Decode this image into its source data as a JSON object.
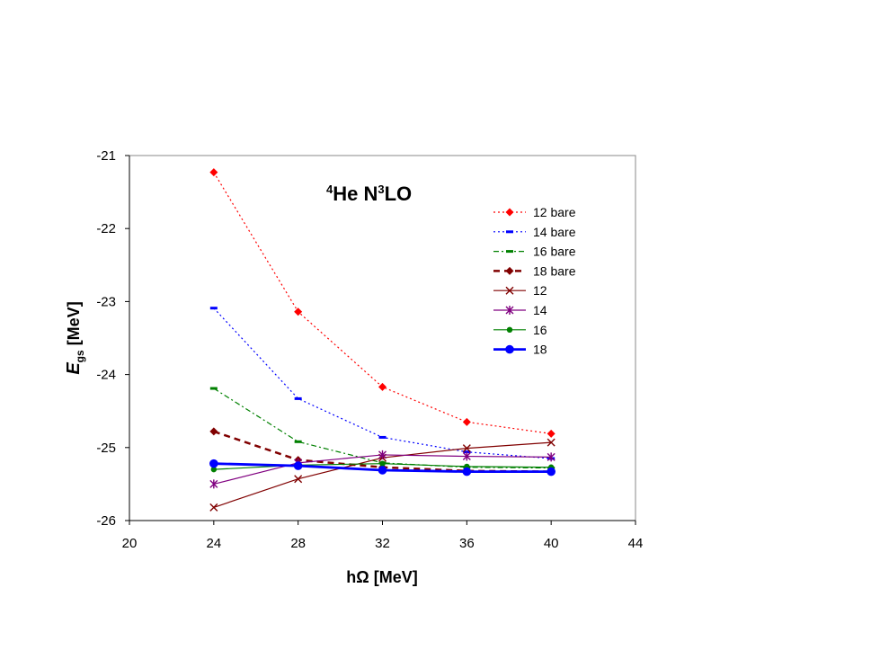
{
  "chart_data": {
    "type": "line",
    "title": "",
    "annotation": {
      "sup1": "4",
      "base1": "He N",
      "sup2": "3",
      "base2": "LO"
    },
    "xlabel": {
      "main": "h",
      "symbol": "Ω",
      "unit": " [MeV]"
    },
    "ylabel": {
      "main": "E",
      "sub": "gs",
      "unit": " [MeV]"
    },
    "xlim": [
      20,
      44
    ],
    "ylim": [
      -26,
      -21
    ],
    "xticks": [
      20,
      24,
      28,
      32,
      36,
      40,
      44
    ],
    "yticks": [
      -21,
      -22,
      -23,
      -24,
      -25,
      -26
    ],
    "grid": false,
    "legend_position": "top-right",
    "x": [
      24,
      28,
      32,
      36,
      40
    ],
    "series": [
      {
        "name": "12 bare",
        "color": "#ff0000",
        "dash": "dotted",
        "width": 1.2,
        "marker": "diamond",
        "values": [
          -21.23,
          -23.14,
          -24.17,
          -24.65,
          -24.81
        ]
      },
      {
        "name": "14 bare",
        "color": "#0000ff",
        "dash": "dotted",
        "width": 1.2,
        "marker": "dash",
        "values": [
          -23.09,
          -24.33,
          -24.86,
          -25.06,
          -25.15
        ]
      },
      {
        "name": "16 bare",
        "color": "#008000",
        "dash": "dashdot",
        "width": 1.2,
        "marker": "dash",
        "values": [
          -24.19,
          -24.92,
          -25.21,
          -25.27,
          -25.28
        ]
      },
      {
        "name": "18 bare",
        "color": "#800000",
        "dash": "dashed",
        "width": 2.5,
        "marker": "diamond",
        "values": [
          -24.78,
          -25.17,
          -25.27,
          -25.32,
          -25.33
        ]
      },
      {
        "name": "12",
        "color": "#800000",
        "dash": "solid",
        "width": 1.2,
        "marker": "x",
        "values": [
          -25.82,
          -25.43,
          -25.14,
          -25.01,
          -24.93
        ]
      },
      {
        "name": "14",
        "color": "#800080",
        "dash": "solid",
        "width": 1.2,
        "marker": "star",
        "values": [
          -25.5,
          -25.21,
          -25.1,
          -25.12,
          -25.13
        ]
      },
      {
        "name": "16",
        "color": "#008000",
        "dash": "solid",
        "width": 1.2,
        "marker": "circle",
        "values": [
          -25.3,
          -25.24,
          -25.22,
          -25.26,
          -25.27
        ]
      },
      {
        "name": "18",
        "color": "#0000ff",
        "dash": "solid",
        "width": 2.8,
        "marker": "circle-large",
        "values": [
          -25.22,
          -25.25,
          -25.31,
          -25.33,
          -25.33
        ]
      }
    ]
  }
}
